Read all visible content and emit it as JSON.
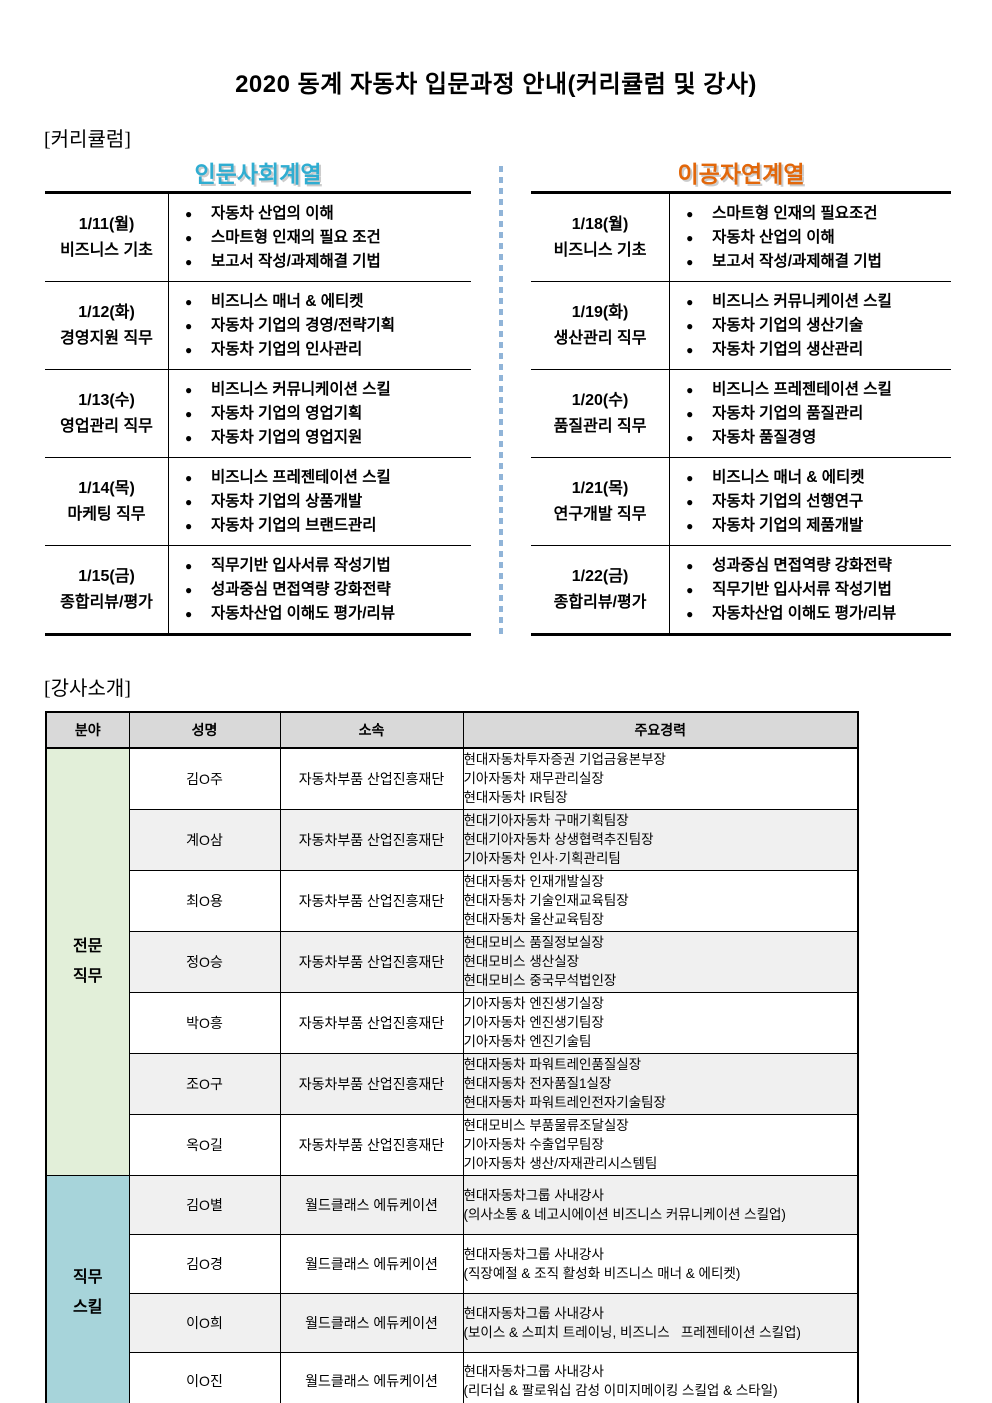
{
  "page": {
    "title": "2020 동계 자동차 입문과정 안내(커리큘럼 및 강사)"
  },
  "curriculum": {
    "section_label": "[커리큘럼]",
    "bullet_glyph": "●",
    "divider_color": "#90b4d8",
    "tracks": [
      {
        "name": "인문사회계열",
        "color": "#2fadd1",
        "rows": [
          {
            "date": "1/11(월)",
            "category": "비즈니스 기초",
            "topics": [
              "자동차 산업의 이해",
              "스마트형 인재의 필요 조건",
              "보고서 작성/과제해결 기법"
            ]
          },
          {
            "date": "1/12(화)",
            "category": "경영지원 직무",
            "topics": [
              "비즈니스 매너 & 에티켓",
              "자동차 기업의 경영/전략기획",
              "자동차 기업의 인사관리"
            ]
          },
          {
            "date": "1/13(수)",
            "category": "영업관리 직무",
            "topics": [
              "비즈니스 커뮤니케이션 스킬",
              "자동차 기업의 영업기획",
              "자동차 기업의 영업지원"
            ]
          },
          {
            "date": "1/14(목)",
            "category": "마케팅 직무",
            "topics": [
              "비즈니스 프레젠테이션 스킬",
              "자동차 기업의 상품개발",
              "자동차 기업의 브랜드관리"
            ]
          },
          {
            "date": "1/15(금)",
            "category": "종합리뷰/평가",
            "topics": [
              "직무기반 입사서류 작성기법",
              "성과중심 면접역량 강화전략",
              "자동차산업 이해도 평가/리뷰"
            ]
          }
        ]
      },
      {
        "name": "이공자연계열",
        "color": "#e2670a",
        "rows": [
          {
            "date": "1/18(월)",
            "category": "비즈니스 기초",
            "topics": [
              "스마트형 인재의 필요조건",
              "자동차 산업의 이해",
              "보고서 작성/과제해결 기법"
            ]
          },
          {
            "date": "1/19(화)",
            "category": "생산관리 직무",
            "topics": [
              "비즈니스 커뮤니케이션 스킬",
              "자동차 기업의 생산기술",
              "자동차 기업의 생산관리"
            ]
          },
          {
            "date": "1/20(수)",
            "category": "품질관리 직무",
            "topics": [
              "비즈니스 프레젠테이션 스킬",
              "자동차 기업의 품질관리",
              "자동차 품질경영"
            ]
          },
          {
            "date": "1/21(목)",
            "category": "연구개발 직무",
            "topics": [
              "비즈니스 매너 & 에티켓",
              "자동차 기업의 선행연구",
              "자동차 기업의 제품개발"
            ]
          },
          {
            "date": "1/22(금)",
            "category": "종합리뷰/평가",
            "topics": [
              "성과중심 면접역량 강화전략",
              "직무기반 입사서류 작성기법",
              "자동차산업 이해도 평가/리뷰"
            ]
          }
        ]
      }
    ]
  },
  "instructors": {
    "section_label": "[강사소개]",
    "headers": [
      "분야",
      "성명",
      "소속",
      "주요경력"
    ],
    "header_bg": "#d9d9d9",
    "zebra_bg": "#f0f0f0",
    "groups": [
      {
        "field": "전문 직무",
        "color": "#e2efd9",
        "row_class": "pro",
        "members": [
          {
            "name": "김O주",
            "affiliation": "자동차부품 산업진흥재단",
            "careers": [
              "현대자동차투자증권 기업금융본부장",
              "기아자동차 재무관리실장",
              "현대자동차 IR팀장"
            ]
          },
          {
            "name": "계O삼",
            "affiliation": "자동차부품 산업진흥재단",
            "careers": [
              "현대기아자동차 구매기획팀장",
              "현대기아자동차 상생협력추진팀장",
              "기아자동차 인사·기획관리팀"
            ]
          },
          {
            "name": "최O용",
            "affiliation": "자동차부품 산업진흥재단",
            "careers": [
              "현대자동차 인재개발실장",
              "현대자동차 기술인재교육팀장",
              "현대자동차 울산교육팀장"
            ]
          },
          {
            "name": "정O승",
            "affiliation": "자동차부품 산업진흥재단",
            "careers": [
              "현대모비스 품질정보실장",
              "현대모비스 생산실장",
              "현대모비스 중국무석법인장"
            ]
          },
          {
            "name": "박O흥",
            "affiliation": "자동차부품 산업진흥재단",
            "careers": [
              "기아자동차 엔진생기실장",
              "기아자동차 엔진생기팀장",
              "기아자동차 엔진기술팀"
            ]
          },
          {
            "name": "조O구",
            "affiliation": "자동차부품 산업진흥재단",
            "careers": [
              "현대자동차 파워트레인품질실장",
              "현대자동차 전자품질1실장",
              "현대자동차 파워트레인전자기술팀장"
            ]
          },
          {
            "name": "옥O길",
            "affiliation": "자동차부품 산업진흥재단",
            "careers": [
              "현대모비스 부품물류조달실장",
              "기아자동차 수출업무팀장",
              "기아자동차 생산/자재관리시스템팀"
            ]
          }
        ]
      },
      {
        "field": "직무 스킬",
        "color": "#a7d4da",
        "row_class": "skill",
        "members": [
          {
            "name": "김O별",
            "affiliation": "월드클래스 에듀케이션",
            "careers": [
              "현대자동차그룹 사내강사",
              "(의사소통 & 네고시에이션 비즈니스 커뮤니케이션 스킬업)"
            ]
          },
          {
            "name": "김O경",
            "affiliation": "월드클래스 에듀케이션",
            "careers": [
              "현대자동차그룹 사내강사",
              "(직장예절 & 조직 활성화 비즈니스 매너 & 에티켓)"
            ]
          },
          {
            "name": "이O희",
            "affiliation": "월드클래스 에듀케이션",
            "careers": [
              "현대자동차그룹 사내강사",
              "(보이스 & 스피치 트레이닝, 비즈니스   프레젠테이션 스킬업)"
            ]
          },
          {
            "name": "이O진",
            "affiliation": "월드클래스 에듀케이션",
            "careers": [
              "현대자동차그룹 사내강사",
              "(리더십 & 팔로워십 감성 이미지메이킹 스킬업 & 스타일)"
            ]
          }
        ]
      }
    ]
  }
}
